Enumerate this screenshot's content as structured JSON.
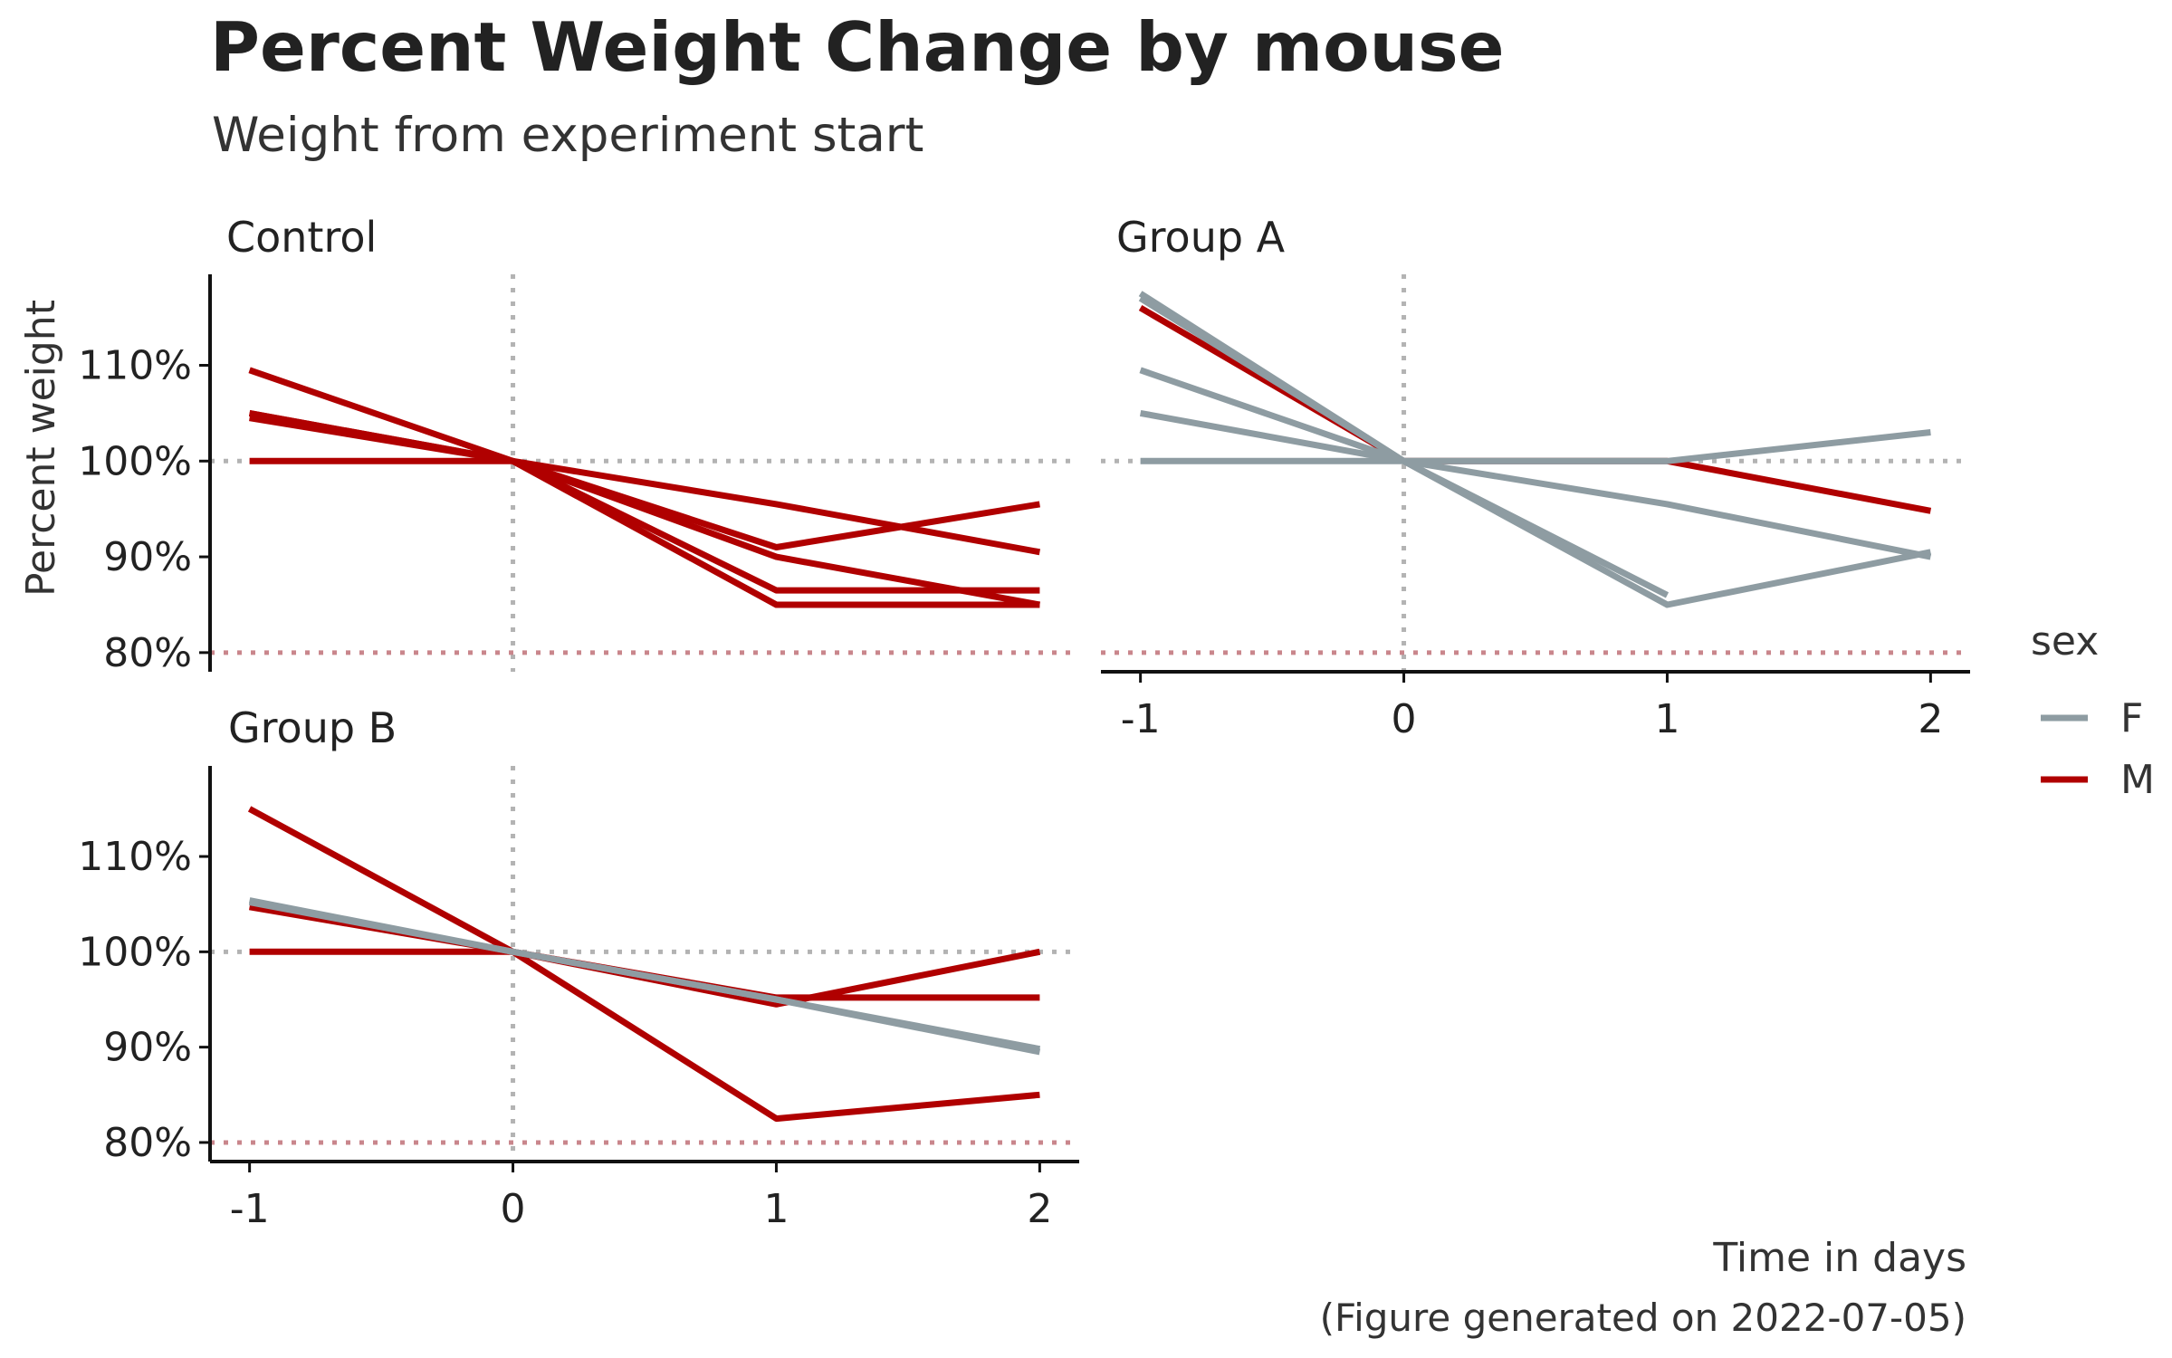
{
  "chart_data": {
    "type": "line",
    "title": "Percent Weight Change by mouse",
    "subtitle": "Weight from experiment start",
    "xlabel": "Time in days",
    "ylabel": "Percent weight",
    "caption": "(Figure generated on 2022-07-05)",
    "x_ticks": [
      "-1",
      "0",
      "1",
      "2"
    ],
    "y_ticks": [
      "80%",
      "90%",
      "100%",
      "110%"
    ],
    "xlim": [
      -1.15,
      2.15
    ],
    "ylim": [
      78,
      119.5
    ],
    "reference_lines": {
      "x": 0,
      "y": 100,
      "threshold_y": 80,
      "grid_color": "#b3b3b3",
      "threshold_color": "#c9868c"
    },
    "legend": {
      "title": "sex",
      "entries": [
        {
          "label": "F",
          "color": "#8e9ca2"
        },
        {
          "label": "M",
          "color": "#b00000"
        }
      ],
      "position": "right"
    },
    "panels": [
      {
        "strip": "Control",
        "series": [
          {
            "sex": "M",
            "x": [
              -1,
              0,
              1,
              2
            ],
            "y": [
              109.5,
              100,
              95.5,
              90.5
            ]
          },
          {
            "sex": "M",
            "x": [
              -1,
              0,
              1,
              2
            ],
            "y": [
              105,
              100,
              91,
              95.5
            ]
          },
          {
            "sex": "M",
            "x": [
              -1,
              0,
              1,
              2
            ],
            "y": [
              104.5,
              100,
              90,
              85
            ]
          },
          {
            "sex": "M",
            "x": [
              -1,
              0,
              1,
              2
            ],
            "y": [
              105,
              100,
              86.5,
              86.5
            ]
          },
          {
            "sex": "M",
            "x": [
              -1,
              0,
              1,
              2
            ],
            "y": [
              100,
              100,
              85,
              85
            ]
          }
        ]
      },
      {
        "strip": "Group A",
        "series": [
          {
            "sex": "M",
            "x": [
              -1,
              0,
              1,
              2
            ],
            "y": [
              116,
              100,
              100,
              94.8
            ]
          },
          {
            "sex": "F",
            "x": [
              -1,
              0,
              1,
              2
            ],
            "y": [
              117.5,
              100,
              85,
              90.5
            ]
          },
          {
            "sex": "F",
            "x": [
              -1,
              0,
              1
            ],
            "y": [
              117,
              100,
              86
            ]
          },
          {
            "sex": "F",
            "x": [
              -1,
              0,
              1,
              2
            ],
            "y": [
              109.5,
              100,
              95.5,
              90
            ]
          },
          {
            "sex": "F",
            "x": [
              -1,
              0,
              1,
              2
            ],
            "y": [
              105,
              100,
              100,
              103
            ]
          },
          {
            "sex": "F",
            "x": [
              -1,
              0,
              1
            ],
            "y": [
              100,
              100,
              100
            ]
          }
        ]
      },
      {
        "strip": "Group B",
        "series": [
          {
            "sex": "M",
            "x": [
              -1,
              0,
              1,
              2
            ],
            "y": [
              115,
              100,
              82.5,
              85
            ]
          },
          {
            "sex": "M",
            "x": [
              -1,
              0,
              1,
              2
            ],
            "y": [
              104.7,
              100,
              94.5,
              100
            ]
          },
          {
            "sex": "M",
            "x": [
              -1,
              0,
              1,
              2
            ],
            "y": [
              100,
              100,
              95.2,
              95.2
            ]
          },
          {
            "sex": "F",
            "x": [
              -1,
              0,
              1,
              2
            ],
            "y": [
              105.2,
              100,
              95,
              89.8
            ]
          },
          {
            "sex": "F",
            "x": [
              -1,
              0,
              1,
              2
            ],
            "y": [
              105.4,
              100,
              95,
              89.5
            ]
          }
        ]
      }
    ]
  }
}
